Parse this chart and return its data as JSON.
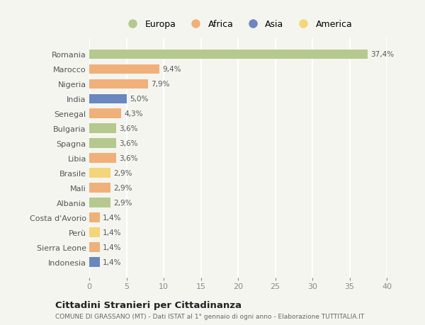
{
  "categories": [
    "Romania",
    "Marocco",
    "Nigeria",
    "India",
    "Senegal",
    "Bulgaria",
    "Spagna",
    "Libia",
    "Brasile",
    "Mali",
    "Albania",
    "Costa d'Avorio",
    "Perù",
    "Sierra Leone",
    "Indonesia"
  ],
  "values": [
    37.4,
    9.4,
    7.9,
    5.0,
    4.3,
    3.6,
    3.6,
    3.6,
    2.9,
    2.9,
    2.9,
    1.4,
    1.4,
    1.4,
    1.4
  ],
  "labels": [
    "37,4%",
    "9,4%",
    "7,9%",
    "5,0%",
    "4,3%",
    "3,6%",
    "3,6%",
    "3,6%",
    "2,9%",
    "2,9%",
    "2,9%",
    "1,4%",
    "1,4%",
    "1,4%",
    "1,4%"
  ],
  "colors": [
    "#b5c98e",
    "#f0b07a",
    "#f0b07a",
    "#6b87c0",
    "#f0b07a",
    "#b5c98e",
    "#b5c98e",
    "#f0b07a",
    "#f5d57a",
    "#f0b07a",
    "#b5c98e",
    "#f0b07a",
    "#f5d57a",
    "#f0b07a",
    "#6b87c0"
  ],
  "legend_labels": [
    "Europa",
    "Africa",
    "Asia",
    "America"
  ],
  "legend_colors": [
    "#b5c98e",
    "#f0b07a",
    "#6b87c0",
    "#f5d57a"
  ],
  "xlim": [
    0,
    40
  ],
  "xticks": [
    0,
    5,
    10,
    15,
    20,
    25,
    30,
    35,
    40
  ],
  "title": "Cittadini Stranieri per Cittadinanza",
  "subtitle": "COMUNE DI GRASSANO (MT) - Dati ISTAT al 1° gennaio di ogni anno - Elaborazione TUTTITALIA.IT",
  "background_color": "#f5f5f0",
  "grid_color": "#ffffff",
  "bar_height": 0.65
}
